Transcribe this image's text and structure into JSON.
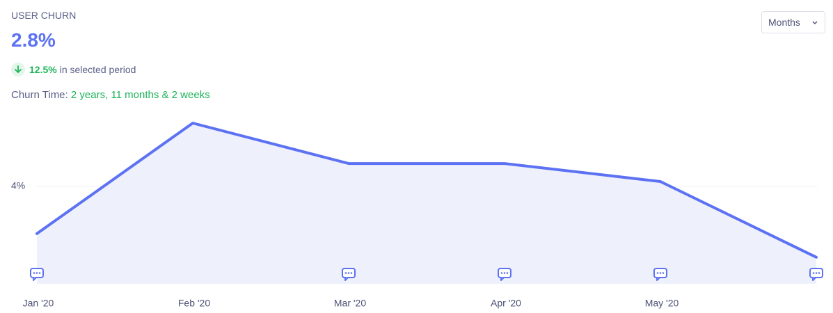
{
  "header": {
    "title": "USER CHURN",
    "kpi": "2.8%",
    "change": "12.5%",
    "change_text": "in selected period",
    "churn_label": "Churn Time:",
    "churn_value": "2 years, 11 months & 2 weeks",
    "dropdown": "Months"
  },
  "chart_data": {
    "type": "area",
    "categories": [
      "Jan '20",
      "Feb '20",
      "Mar '20",
      "Apr '20",
      "May '20",
      null
    ],
    "values": [
      2.06,
      6.6,
      4.94,
      4.94,
      4.2,
      1.09
    ],
    "color": "#5c72f3",
    "fill": "#eef0fc",
    "ylim": [
      0,
      7
    ],
    "yticks": [
      {
        "value": 4,
        "label": "4%"
      }
    ],
    "grid": true
  }
}
